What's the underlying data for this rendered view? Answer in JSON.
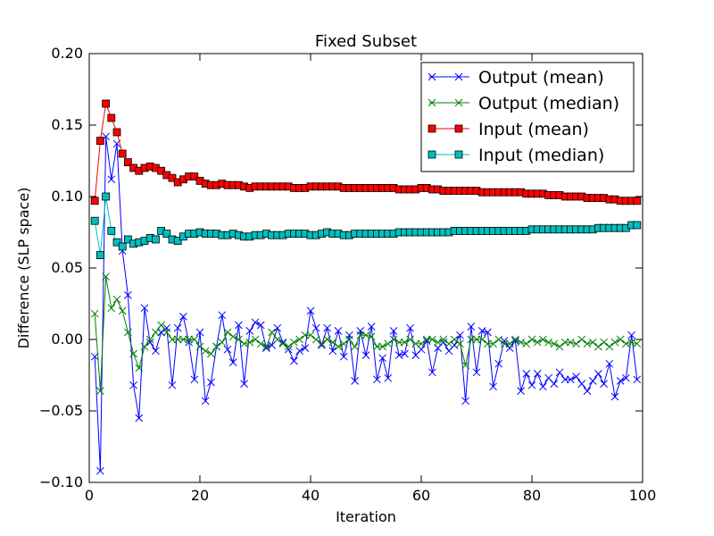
{
  "chart_data": {
    "type": "line",
    "title": "Fixed Subset",
    "xlabel": "Iteration",
    "ylabel": "Difference (SLP space)",
    "xlim": [
      0,
      100
    ],
    "ylim": [
      -0.1,
      0.2
    ],
    "xticks": [
      0,
      20,
      40,
      60,
      80,
      100
    ],
    "xtick_labels": [
      "0",
      "20",
      "40",
      "60",
      "80",
      "100"
    ],
    "yticks": [
      -0.1,
      -0.05,
      0.0,
      0.05,
      0.1,
      0.15,
      0.2
    ],
    "ytick_labels": [
      "−0.10",
      "−0.05",
      "0.00",
      "0.05",
      "0.10",
      "0.15",
      "0.20"
    ],
    "grid": false,
    "legend_position": "top-right",
    "series": [
      {
        "name": "Output (mean)",
        "color": "#0000ff",
        "marker": "x",
        "x": [
          1,
          2,
          3,
          4,
          5,
          6,
          7,
          8,
          9,
          10,
          11,
          12,
          13,
          14,
          15,
          16,
          17,
          18,
          19,
          20,
          21,
          22,
          23,
          24,
          25,
          26,
          27,
          28,
          29,
          30,
          31,
          32,
          33,
          34,
          35,
          36,
          37,
          38,
          39,
          40,
          41,
          42,
          43,
          44,
          45,
          46,
          47,
          48,
          49,
          50,
          51,
          52,
          53,
          54,
          55,
          56,
          57,
          58,
          59,
          60,
          61,
          62,
          63,
          64,
          65,
          66,
          67,
          68,
          69,
          70,
          71,
          72,
          73,
          74,
          75,
          76,
          77,
          78,
          79,
          80,
          81,
          82,
          83,
          84,
          85,
          86,
          87,
          88,
          89,
          90,
          91,
          92,
          93,
          94,
          95,
          96,
          97,
          98,
          99
        ],
        "y": [
          -0.012,
          -0.092,
          0.142,
          0.112,
          0.137,
          0.062,
          0.031,
          -0.032,
          -0.055,
          0.022,
          -0.002,
          -0.008,
          0.005,
          0.008,
          -0.032,
          0.008,
          0.016,
          -0.002,
          -0.028,
          0.005,
          -0.043,
          -0.03,
          -0.005,
          0.017,
          -0.007,
          -0.016,
          0.01,
          -0.031,
          0.006,
          0.012,
          0.01,
          -0.006,
          -0.004,
          0.008,
          -0.002,
          -0.007,
          -0.015,
          -0.008,
          -0.006,
          0.02,
          0.008,
          -0.004,
          0.008,
          -0.008,
          0.006,
          -0.012,
          0.003,
          -0.029,
          0.006,
          -0.011,
          0.009,
          -0.028,
          -0.013,
          -0.027,
          0.006,
          -0.011,
          -0.01,
          0.008,
          -0.011,
          -0.007,
          -0.001,
          -0.023,
          -0.006,
          -0.002,
          -0.008,
          -0.004,
          0.003,
          -0.043,
          0.009,
          -0.023,
          0.006,
          0.005,
          -0.033,
          -0.017,
          -0.001,
          -0.006,
          -0.001,
          -0.036,
          -0.024,
          -0.032,
          -0.024,
          -0.033,
          -0.027,
          -0.031,
          -0.023,
          -0.028,
          -0.028,
          -0.026,
          -0.031,
          -0.036,
          -0.029,
          -0.024,
          -0.031,
          -0.017,
          -0.04,
          -0.029,
          -0.027,
          0.003,
          -0.028
        ]
      },
      {
        "name": "Output (median)",
        "color": "#008000",
        "marker": "x",
        "x": [
          1,
          2,
          3,
          4,
          5,
          6,
          7,
          8,
          9,
          10,
          11,
          12,
          13,
          14,
          15,
          16,
          17,
          18,
          19,
          20,
          21,
          22,
          23,
          24,
          25,
          26,
          27,
          28,
          29,
          30,
          31,
          32,
          33,
          34,
          35,
          36,
          37,
          38,
          39,
          40,
          41,
          42,
          43,
          44,
          45,
          46,
          47,
          48,
          49,
          50,
          51,
          52,
          53,
          54,
          55,
          56,
          57,
          58,
          59,
          60,
          61,
          62,
          63,
          64,
          65,
          66,
          67,
          68,
          69,
          70,
          71,
          72,
          73,
          74,
          75,
          76,
          77,
          78,
          79,
          80,
          81,
          82,
          83,
          84,
          85,
          86,
          87,
          88,
          89,
          90,
          91,
          92,
          93,
          94,
          95,
          96,
          97,
          98,
          99
        ],
        "y": [
          0.018,
          -0.036,
          0.044,
          0.022,
          0.028,
          0.02,
          0.005,
          -0.01,
          -0.02,
          -0.005,
          0.0,
          0.005,
          0.01,
          0.005,
          0.0,
          0.0,
          0.0,
          0.0,
          0.0,
          -0.005,
          -0.008,
          -0.01,
          -0.005,
          -0.002,
          0.005,
          0.002,
          0.0,
          -0.003,
          -0.002,
          0.0,
          -0.003,
          -0.005,
          0.005,
          0.0,
          -0.003,
          -0.005,
          -0.002,
          0.0,
          0.003,
          0.003,
          0.0,
          -0.003,
          0.0,
          -0.002,
          -0.005,
          -0.003,
          0.0,
          -0.005,
          0.003,
          0.003,
          0.002,
          -0.005,
          -0.005,
          -0.003,
          0.0,
          -0.002,
          -0.002,
          0.0,
          -0.003,
          -0.003,
          0.0,
          0.0,
          -0.002,
          0.0,
          -0.003,
          0.0,
          -0.003,
          -0.018,
          0.0,
          0.0,
          0.0,
          -0.003,
          -0.003,
          0.0,
          -0.003,
          -0.003,
          0.0,
          -0.002,
          -0.003,
          0.0,
          -0.002,
          0.0,
          -0.002,
          -0.003,
          -0.005,
          -0.002,
          -0.002,
          -0.003,
          0.0,
          -0.003,
          -0.002,
          -0.005,
          -0.002,
          -0.005,
          -0.002,
          0.0,
          -0.003,
          -0.002,
          -0.003
        ]
      },
      {
        "name": "Input (mean)",
        "color": "#ff0000",
        "marker": "square",
        "x": [
          1,
          2,
          3,
          4,
          5,
          6,
          7,
          8,
          9,
          10,
          11,
          12,
          13,
          14,
          15,
          16,
          17,
          18,
          19,
          20,
          21,
          22,
          23,
          24,
          25,
          26,
          27,
          28,
          29,
          30,
          31,
          32,
          33,
          34,
          35,
          36,
          37,
          38,
          39,
          40,
          41,
          42,
          43,
          44,
          45,
          46,
          47,
          48,
          49,
          50,
          51,
          52,
          53,
          54,
          55,
          56,
          57,
          58,
          59,
          60,
          61,
          62,
          63,
          64,
          65,
          66,
          67,
          68,
          69,
          70,
          71,
          72,
          73,
          74,
          75,
          76,
          77,
          78,
          79,
          80,
          81,
          82,
          83,
          84,
          85,
          86,
          87,
          88,
          89,
          90,
          91,
          92,
          93,
          94,
          95,
          96,
          97,
          98,
          99
        ],
        "y": [
          0.097,
          0.139,
          0.165,
          0.155,
          0.145,
          0.13,
          0.124,
          0.12,
          0.118,
          0.12,
          0.121,
          0.12,
          0.118,
          0.115,
          0.113,
          0.11,
          0.112,
          0.114,
          0.114,
          0.111,
          0.109,
          0.108,
          0.108,
          0.109,
          0.108,
          0.108,
          0.108,
          0.107,
          0.106,
          0.107,
          0.107,
          0.107,
          0.107,
          0.107,
          0.107,
          0.107,
          0.106,
          0.106,
          0.106,
          0.107,
          0.107,
          0.107,
          0.107,
          0.107,
          0.107,
          0.106,
          0.106,
          0.106,
          0.106,
          0.106,
          0.106,
          0.106,
          0.106,
          0.106,
          0.106,
          0.105,
          0.105,
          0.105,
          0.105,
          0.106,
          0.106,
          0.105,
          0.105,
          0.104,
          0.104,
          0.104,
          0.104,
          0.104,
          0.104,
          0.104,
          0.103,
          0.103,
          0.103,
          0.103,
          0.103,
          0.103,
          0.103,
          0.103,
          0.102,
          0.102,
          0.102,
          0.102,
          0.101,
          0.101,
          0.101,
          0.1,
          0.1,
          0.1,
          0.1,
          0.099,
          0.099,
          0.099,
          0.099,
          0.098,
          0.098,
          0.097,
          0.097,
          0.097,
          0.097
        ]
      },
      {
        "name": "Input (median)",
        "color": "#00bfbf",
        "marker": "square",
        "x": [
          1,
          2,
          3,
          4,
          5,
          6,
          7,
          8,
          9,
          10,
          11,
          12,
          13,
          14,
          15,
          16,
          17,
          18,
          19,
          20,
          21,
          22,
          23,
          24,
          25,
          26,
          27,
          28,
          29,
          30,
          31,
          32,
          33,
          34,
          35,
          36,
          37,
          38,
          39,
          40,
          41,
          42,
          43,
          44,
          45,
          46,
          47,
          48,
          49,
          50,
          51,
          52,
          53,
          54,
          55,
          56,
          57,
          58,
          59,
          60,
          61,
          62,
          63,
          64,
          65,
          66,
          67,
          68,
          69,
          70,
          71,
          72,
          73,
          74,
          75,
          76,
          77,
          78,
          79,
          80,
          81,
          82,
          83,
          84,
          85,
          86,
          87,
          88,
          89,
          90,
          91,
          92,
          93,
          94,
          95,
          96,
          97,
          98,
          99
        ],
        "y": [
          0.083,
          0.059,
          0.1,
          0.076,
          0.068,
          0.065,
          0.07,
          0.067,
          0.068,
          0.069,
          0.071,
          0.07,
          0.076,
          0.074,
          0.07,
          0.069,
          0.072,
          0.074,
          0.074,
          0.075,
          0.074,
          0.074,
          0.074,
          0.073,
          0.073,
          0.074,
          0.073,
          0.072,
          0.072,
          0.073,
          0.073,
          0.074,
          0.073,
          0.073,
          0.073,
          0.074,
          0.074,
          0.074,
          0.074,
          0.073,
          0.073,
          0.074,
          0.075,
          0.074,
          0.074,
          0.073,
          0.073,
          0.074,
          0.074,
          0.074,
          0.074,
          0.074,
          0.074,
          0.074,
          0.074,
          0.075,
          0.075,
          0.075,
          0.075,
          0.075,
          0.075,
          0.075,
          0.075,
          0.075,
          0.075,
          0.076,
          0.076,
          0.076,
          0.076,
          0.076,
          0.076,
          0.076,
          0.076,
          0.076,
          0.076,
          0.076,
          0.076,
          0.076,
          0.076,
          0.077,
          0.077,
          0.077,
          0.077,
          0.077,
          0.077,
          0.077,
          0.077,
          0.077,
          0.077,
          0.077,
          0.077,
          0.078,
          0.078,
          0.078,
          0.078,
          0.078,
          0.078,
          0.08,
          0.08
        ]
      }
    ]
  }
}
